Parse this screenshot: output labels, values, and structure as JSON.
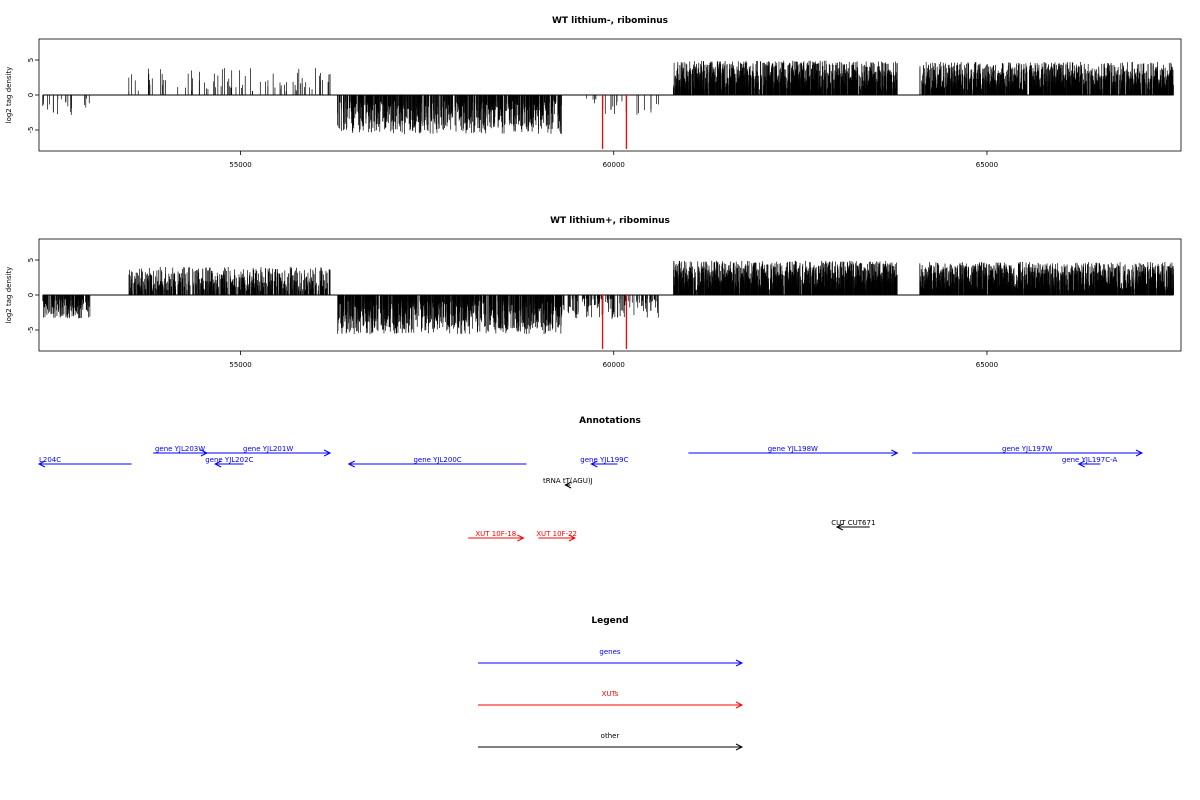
{
  "colors": {
    "gene": "#0000ff",
    "xut": "#ff0000",
    "other": "#000000",
    "marker": "#ff0000"
  },
  "chart_data": [
    {
      "type": "bar",
      "title": "WT lithium-, ribominus",
      "ylabel": "log2 tag density",
      "xlim": [
        52300,
        67600
      ],
      "ylim": [
        -8,
        8
      ],
      "xticks": [
        55000,
        60000,
        65000
      ],
      "yticks": [
        5,
        0,
        -5
      ],
      "grid": false,
      "signal_regions": [
        {
          "start": 52350,
          "end": 53000,
          "sign": -1,
          "mean": 2.0,
          "density": 0.03
        },
        {
          "start": 53500,
          "end": 56200,
          "sign": 1,
          "mean": 2.2,
          "density": 0.03
        },
        {
          "start": 56300,
          "end": 59300,
          "sign": -1,
          "mean": 3.2,
          "density": 0.25
        },
        {
          "start": 59500,
          "end": 60600,
          "sign": -1,
          "mean": 1.8,
          "density": 0.02
        },
        {
          "start": 60800,
          "end": 63800,
          "sign": 1,
          "mean": 2.8,
          "density": 0.4
        },
        {
          "start": 64100,
          "end": 67500,
          "sign": 1,
          "mean": 2.7,
          "density": 0.35
        }
      ],
      "highlighted_positions": [
        59850,
        60170
      ],
      "highlight_value": -7.7
    },
    {
      "type": "bar",
      "title": "WT lithium+, ribominus",
      "ylabel": "log2 tag density",
      "xlim": [
        52300,
        67600
      ],
      "ylim": [
        -8,
        8
      ],
      "xticks": [
        55000,
        60000,
        65000
      ],
      "yticks": [
        5,
        0,
        -5
      ],
      "grid": false,
      "signal_regions": [
        {
          "start": 52350,
          "end": 53000,
          "sign": -1,
          "mean": 1.9,
          "density": 0.25
        },
        {
          "start": 53500,
          "end": 56200,
          "sign": 1,
          "mean": 2.3,
          "density": 0.2
        },
        {
          "start": 56300,
          "end": 59300,
          "sign": -1,
          "mean": 3.2,
          "density": 0.3
        },
        {
          "start": 59300,
          "end": 60600,
          "sign": -1,
          "mean": 2.0,
          "density": 0.1
        },
        {
          "start": 60800,
          "end": 63800,
          "sign": 1,
          "mean": 2.8,
          "density": 0.45
        },
        {
          "start": 64100,
          "end": 67500,
          "sign": 1,
          "mean": 2.7,
          "density": 0.45
        }
      ],
      "highlighted_positions": [
        59850,
        60170
      ],
      "highlight_value": -7.7
    }
  ],
  "annotations": {
    "title": "Annotations",
    "features": [
      {
        "label": "L204C",
        "kind": "gene",
        "start": 52300,
        "end": 53540,
        "strand": "-",
        "row": 1
      },
      {
        "label": "gene YJL203W",
        "kind": "gene",
        "start": 53830,
        "end": 54550,
        "strand": "+",
        "row": 0
      },
      {
        "label": "gene YJL202C",
        "kind": "gene",
        "start": 54660,
        "end": 55040,
        "strand": "-",
        "row": 1
      },
      {
        "label": "gene YJL201W",
        "kind": "gene",
        "start": 54540,
        "end": 56200,
        "strand": "+",
        "row": 0
      },
      {
        "label": "gene YJL200C",
        "kind": "gene",
        "start": 56450,
        "end": 58830,
        "strand": "-",
        "row": 1
      },
      {
        "label": "gene YJL199C",
        "kind": "gene",
        "start": 59700,
        "end": 60050,
        "strand": "-",
        "row": 1
      },
      {
        "label": "tRNA tT(AGU)J",
        "kind": "other",
        "start": 59350,
        "end": 59420,
        "strand": "-",
        "row": 2
      },
      {
        "label": "gene YJL198W",
        "kind": "gene",
        "start": 61000,
        "end": 63800,
        "strand": "+",
        "row": 0
      },
      {
        "label": "gene YJL197W",
        "kind": "gene",
        "start": 64000,
        "end": 67600,
        "strand": "+",
        "row": 0
      },
      {
        "label": "gene YJL197C-A",
        "kind": "gene",
        "start": 66230,
        "end": 66520,
        "strand": "-",
        "row": 1
      },
      {
        "label": "XUT 10F-18",
        "kind": "xut",
        "start": 58050,
        "end": 58790,
        "strand": "+",
        "row": 4
      },
      {
        "label": "XUT 10F-22",
        "kind": "xut",
        "start": 58990,
        "end": 59480,
        "strand": "+",
        "row": 4
      },
      {
        "label": "CUT CUT671",
        "kind": "other",
        "start": 62990,
        "end": 63430,
        "strand": "-",
        "row": 3
      }
    ]
  },
  "legend": {
    "title": "Legend",
    "items": [
      {
        "label": "genes",
        "kind": "gene"
      },
      {
        "label": "XUTs",
        "kind": "xut"
      },
      {
        "label": "other",
        "kind": "other"
      }
    ]
  }
}
